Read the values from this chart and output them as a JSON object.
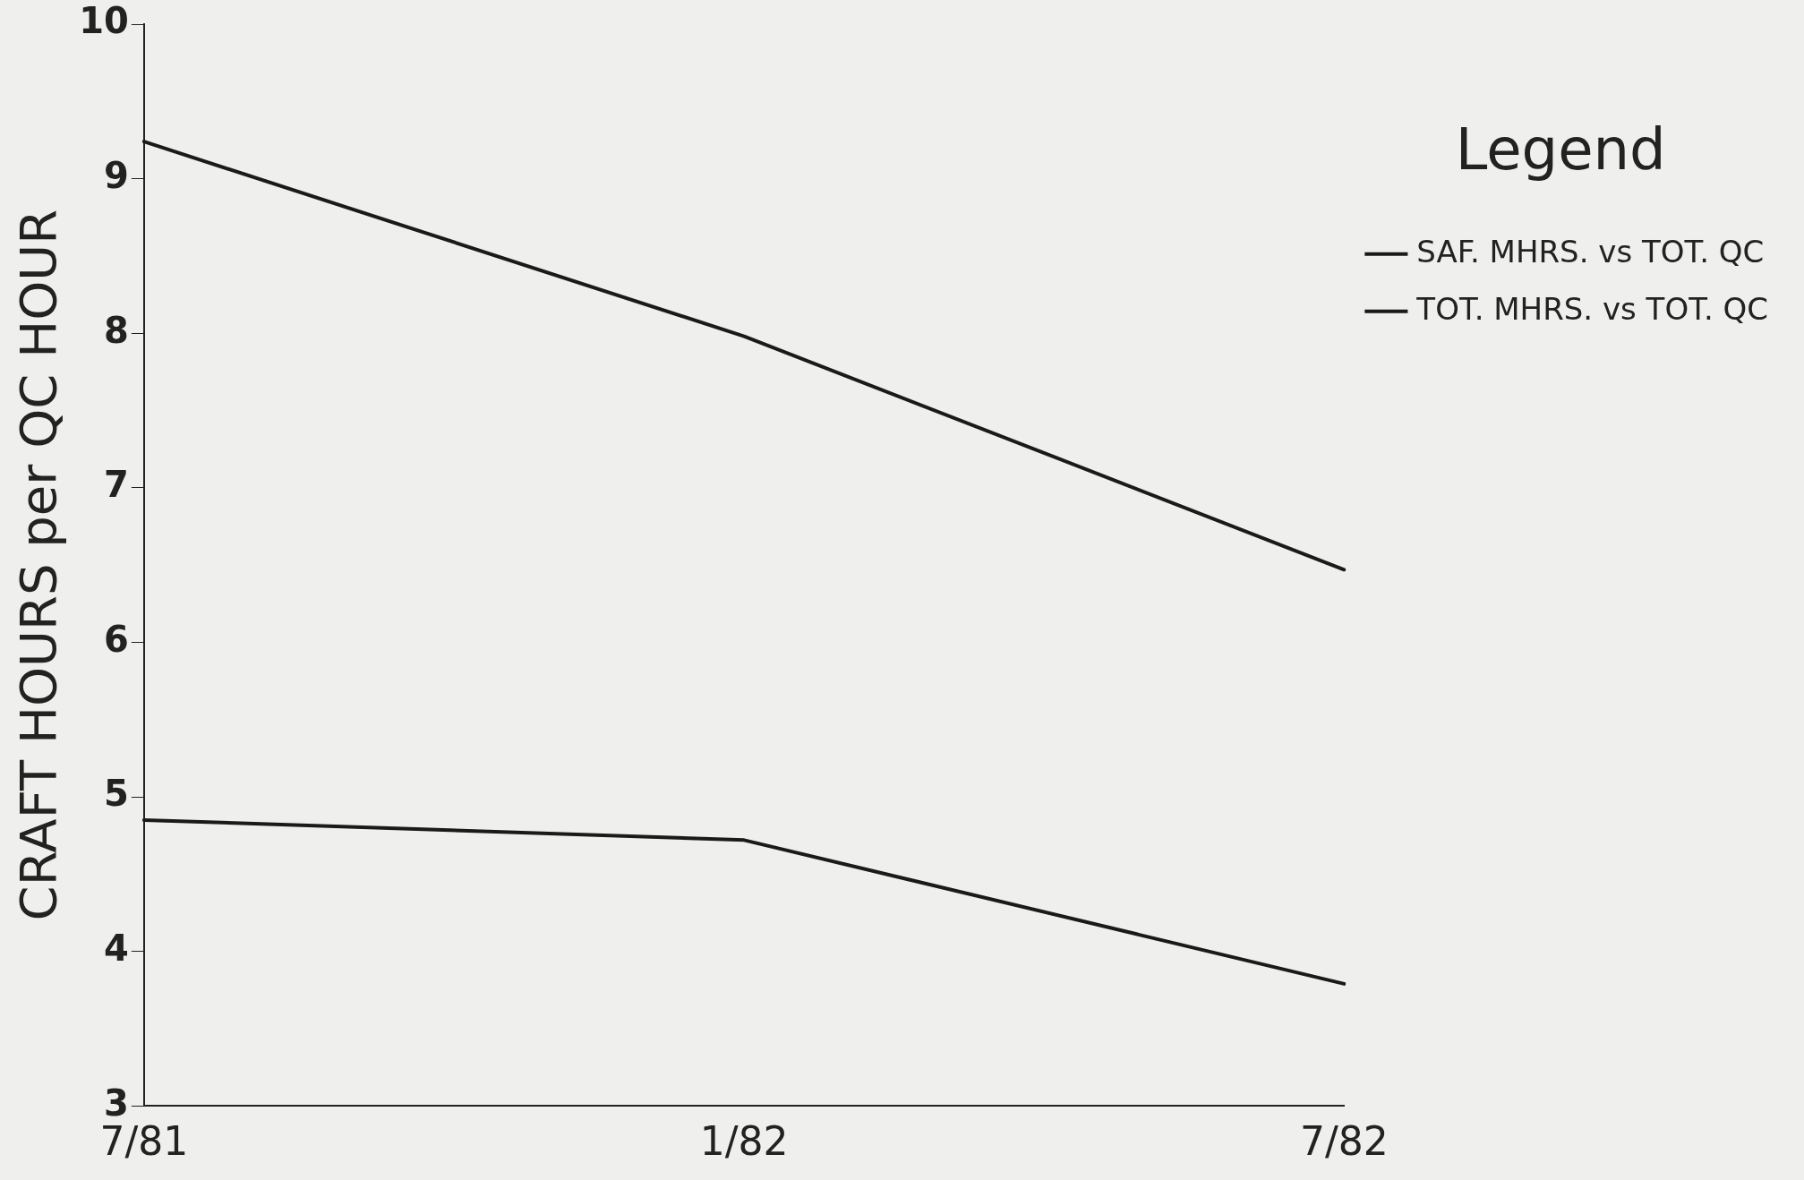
{
  "chart_data": {
    "type": "line",
    "ylabel": "CRAFT HOURS per QC HOUR",
    "legend_title": "Legend",
    "categories": [
      "7/81",
      "1/82",
      "7/82"
    ],
    "series": [
      {
        "name": "SAF. MHRS. vs TOT. QC",
        "color": "#1a1a1a",
        "values": [
          4.85,
          4.72,
          3.79
        ]
      },
      {
        "name": "TOT. MHRS. vs TOT. QC",
        "color": "#1a1a1a",
        "values": [
          9.24,
          7.98,
          6.47
        ]
      }
    ],
    "ylim": [
      3,
      10
    ],
    "yticks": [
      3,
      4,
      5,
      6,
      7,
      8,
      9,
      10
    ],
    "grid": false,
    "legend": "top right",
    "marker": "none",
    "line_style": "solid"
  }
}
